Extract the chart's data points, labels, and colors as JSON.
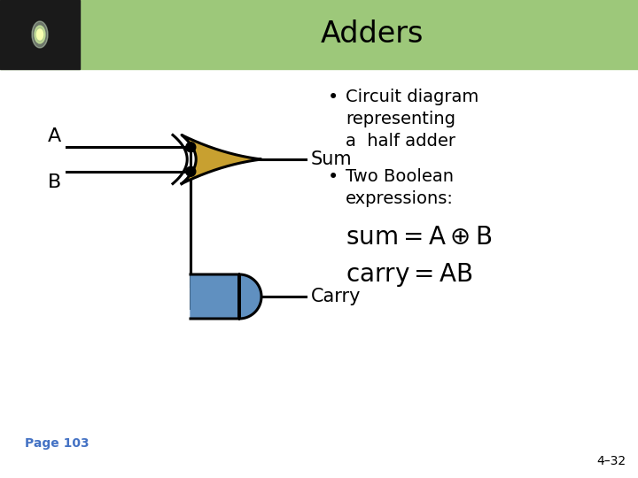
{
  "title": "Adders",
  "title_bg_color": "#9dc87a",
  "title_text_color": "#000000",
  "page_label": "Page 103",
  "page_label_color": "#4472c4",
  "slide_number": "4–32",
  "bullet1_line1": "Circuit diagram",
  "bullet1_line2": "representing",
  "bullet1_line3": "a  half adder",
  "bullet2_line1": "Two Boolean",
  "bullet2_line2": "expressions:",
  "xor_gate_color": "#c8a030",
  "and_gate_color": "#6090c0",
  "background_color": "#ffffff",
  "header_bg": "#9dc87a",
  "header_dark": "#1a1a1a",
  "lw": 2.2
}
